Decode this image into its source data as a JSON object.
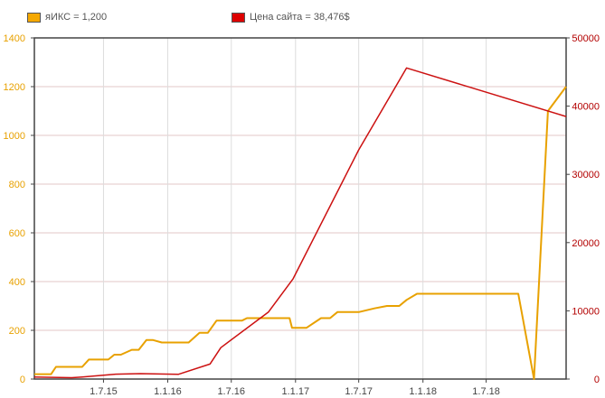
{
  "legend": {
    "series1_label": "яИКС = 1,200",
    "series2_label": "Цена сайта = 38,476$"
  },
  "chart_data": {
    "type": "line",
    "x_tick_labels": [
      "1.7.15",
      "1.1.16",
      "1.7.16",
      "1.1.17",
      "1.7.17",
      "1.1.18",
      "1.7.18"
    ],
    "x_tick_dates": [
      "2015-07-01",
      "2016-01-01",
      "2016-07-01",
      "2017-01-01",
      "2017-07-01",
      "2018-01-01",
      "2018-07-01"
    ],
    "x_range": [
      "2014-12-15",
      "2019-02-15"
    ],
    "y_left": {
      "range": [
        0,
        1400
      ],
      "ticks": [
        0,
        200,
        400,
        600,
        800,
        1000,
        1200,
        1400
      ],
      "color": "#e8a100"
    },
    "y_right": {
      "range": [
        0,
        50000
      ],
      "ticks": [
        0,
        10000,
        20000,
        30000,
        40000,
        50000
      ],
      "color": "#b30000"
    },
    "grid": true,
    "legend_position": "top",
    "series": [
      {
        "name": "яИКС",
        "axis": "left",
        "color": "#e8a100",
        "points": [
          [
            "2014-12-15",
            20
          ],
          [
            "2015-02-01",
            20
          ],
          [
            "2015-02-15",
            50
          ],
          [
            "2015-05-01",
            50
          ],
          [
            "2015-05-20",
            80
          ],
          [
            "2015-07-15",
            80
          ],
          [
            "2015-08-01",
            100
          ],
          [
            "2015-08-20",
            100
          ],
          [
            "2015-09-20",
            120
          ],
          [
            "2015-10-10",
            120
          ],
          [
            "2015-11-01",
            160
          ],
          [
            "2015-11-20",
            160
          ],
          [
            "2015-12-15",
            150
          ],
          [
            "2016-03-01",
            150
          ],
          [
            "2016-04-01",
            190
          ],
          [
            "2016-04-25",
            190
          ],
          [
            "2016-05-20",
            240
          ],
          [
            "2016-08-01",
            240
          ],
          [
            "2016-08-15",
            250
          ],
          [
            "2016-12-15",
            250
          ],
          [
            "2016-12-22",
            210
          ],
          [
            "2017-02-01",
            210
          ],
          [
            "2017-03-15",
            250
          ],
          [
            "2017-04-10",
            250
          ],
          [
            "2017-05-01",
            275
          ],
          [
            "2017-07-01",
            275
          ],
          [
            "2017-08-15",
            290
          ],
          [
            "2017-09-20",
            300
          ],
          [
            "2017-10-25",
            300
          ],
          [
            "2017-11-15",
            325
          ],
          [
            "2017-12-15",
            350
          ],
          [
            "2018-10-01",
            350
          ],
          [
            "2018-11-15",
            0
          ],
          [
            "2018-12-25",
            1100
          ],
          [
            "2019-02-15",
            1200
          ]
        ]
      },
      {
        "name": "Цена сайта",
        "axis": "right",
        "color": "#cc1111",
        "points": [
          [
            "2014-12-15",
            300
          ],
          [
            "2015-04-01",
            200
          ],
          [
            "2015-05-01",
            300
          ],
          [
            "2015-08-01",
            700
          ],
          [
            "2015-10-15",
            800
          ],
          [
            "2016-02-01",
            700
          ],
          [
            "2016-05-01",
            2200
          ],
          [
            "2016-06-01",
            4600
          ],
          [
            "2016-10-15",
            9800
          ],
          [
            "2016-12-25",
            14700
          ],
          [
            "2017-07-01",
            33600
          ],
          [
            "2017-11-15",
            45600
          ],
          [
            "2019-02-15",
            38476
          ]
        ]
      }
    ]
  }
}
